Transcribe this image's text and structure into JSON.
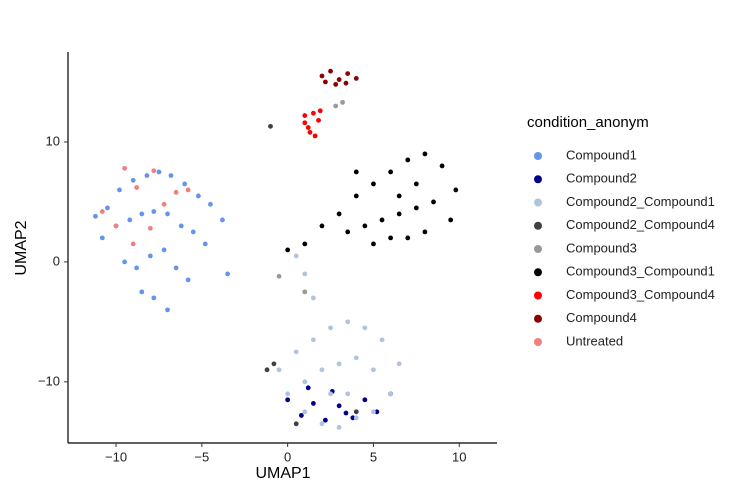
{
  "chart_data": {
    "type": "scatter",
    "x_label": "UMAP1",
    "y_label": "UMAP2",
    "legend_title": "condition_anonym",
    "xlim": [
      -12.8,
      12.2
    ],
    "ylim": [
      -15.1,
      17.5
    ],
    "xticks": [
      {
        "value": -10,
        "label": "−10"
      },
      {
        "value": -5,
        "label": "−5"
      },
      0,
      5,
      10
    ],
    "yticks": [
      {
        "value": -10,
        "label": "−10"
      },
      0,
      10
    ],
    "series": [
      {
        "name": "Compound1",
        "color": "#6495ED",
        "x": [
          -10.5,
          -9.8,
          -9,
          -8.2,
          -7.5,
          -6.8,
          -6,
          -5.2,
          -4.5,
          -3.8,
          -10.8,
          -10,
          -9.2,
          -8.5,
          -7.8,
          -7,
          -6.2,
          -5.5,
          -4.8,
          -9.5,
          -8.8,
          -8,
          -7.2,
          -6.5,
          -5.8,
          -8.5,
          -7.8,
          -7,
          -3.5,
          -11.2
        ],
        "y": [
          4.5,
          6,
          6.8,
          7.2,
          7.5,
          7.2,
          6.5,
          5.5,
          4.8,
          3.5,
          2,
          3,
          3.5,
          4,
          4.2,
          4,
          3,
          2.5,
          1.5,
          0,
          -0.5,
          0.5,
          1,
          -0.5,
          -1.5,
          -2.5,
          -3,
          -4,
          -1,
          3.8
        ]
      },
      {
        "name": "Compound2",
        "color": "#00008B",
        "x": [
          0,
          0.8,
          1.5,
          2.2,
          3,
          3.8,
          4.5,
          5.2,
          1.2,
          2.6,
          3.4,
          6
        ],
        "y": [
          -11.5,
          -12.8,
          -11.8,
          -13.2,
          -12,
          -13,
          -11.5,
          -12.5,
          -10.5,
          -10.8,
          -12.6,
          -11
        ]
      },
      {
        "name": "Compound2_Compound1",
        "color": "#B0C4DE",
        "x": [
          -0.5,
          0.5,
          1.5,
          2.5,
          3.5,
          4.5,
          5.5,
          6.5,
          0,
          1,
          2,
          3,
          4,
          5,
          6,
          1,
          2,
          3,
          4,
          5,
          2.5,
          3.5,
          1.5,
          1,
          0.5
        ],
        "y": [
          -9,
          -7.5,
          -6.5,
          -5.5,
          -5,
          -5.5,
          -6.5,
          -8.5,
          -11,
          -10,
          -9,
          -8.5,
          -8,
          -9,
          -11,
          -12.5,
          -13.5,
          -13.8,
          -13,
          -12.5,
          -11,
          -11,
          -3,
          -1,
          0.5
        ]
      },
      {
        "name": "Compound2_Compound4",
        "color": "#404040",
        "x": [
          -0.8,
          -1.2,
          0.5,
          4,
          -1
        ],
        "y": [
          -8.5,
          -9,
          -13.5,
          -12.5,
          11.3
        ]
      },
      {
        "name": "Compound3",
        "color": "#999999",
        "x": [
          2.8,
          3.2,
          -0.5,
          1
        ],
        "y": [
          13,
          13.3,
          -1.2,
          -2.5
        ]
      },
      {
        "name": "Compound3_Compound1",
        "color": "#000000",
        "x": [
          3,
          4,
          5,
          6,
          7,
          8,
          9,
          9.8,
          3.5,
          4.5,
          5.5,
          6.5,
          7.5,
          8.5,
          9.5,
          5,
          6,
          7,
          8,
          7.5,
          4,
          2,
          1,
          0,
          6.5
        ],
        "y": [
          4,
          5.5,
          6.5,
          7.5,
          8.5,
          9,
          8,
          6,
          2.5,
          3,
          3.5,
          4,
          4.5,
          5,
          3.5,
          1.5,
          2,
          2,
          2.5,
          6.5,
          7.5,
          3,
          1.5,
          1,
          5.5
        ]
      },
      {
        "name": "Compound3_Compound4",
        "color": "#FF0000",
        "x": [
          1,
          1.2,
          1.5,
          1.8,
          1.3,
          1.6,
          1,
          1.9
        ],
        "y": [
          12.2,
          11.2,
          12.4,
          11.8,
          10.8,
          10.5,
          11.6,
          12.6
        ]
      },
      {
        "name": "Compound4",
        "color": "#8B0000",
        "x": [
          2,
          2.5,
          3,
          3.5,
          4,
          2.8,
          3.4,
          2.2
        ],
        "y": [
          15.5,
          15.9,
          15.2,
          15.7,
          15.3,
          14.8,
          14.9,
          15
        ]
      },
      {
        "name": "Untreated",
        "color": "#F08080",
        "x": [
          -10.8,
          -9.5,
          -8.8,
          -7.8,
          -6.5,
          -10,
          -9,
          -5.8,
          -8,
          -7.2
        ],
        "y": [
          4.2,
          7.8,
          6.2,
          7.6,
          5.8,
          3,
          1.5,
          6,
          2.8,
          4.8
        ]
      }
    ]
  }
}
